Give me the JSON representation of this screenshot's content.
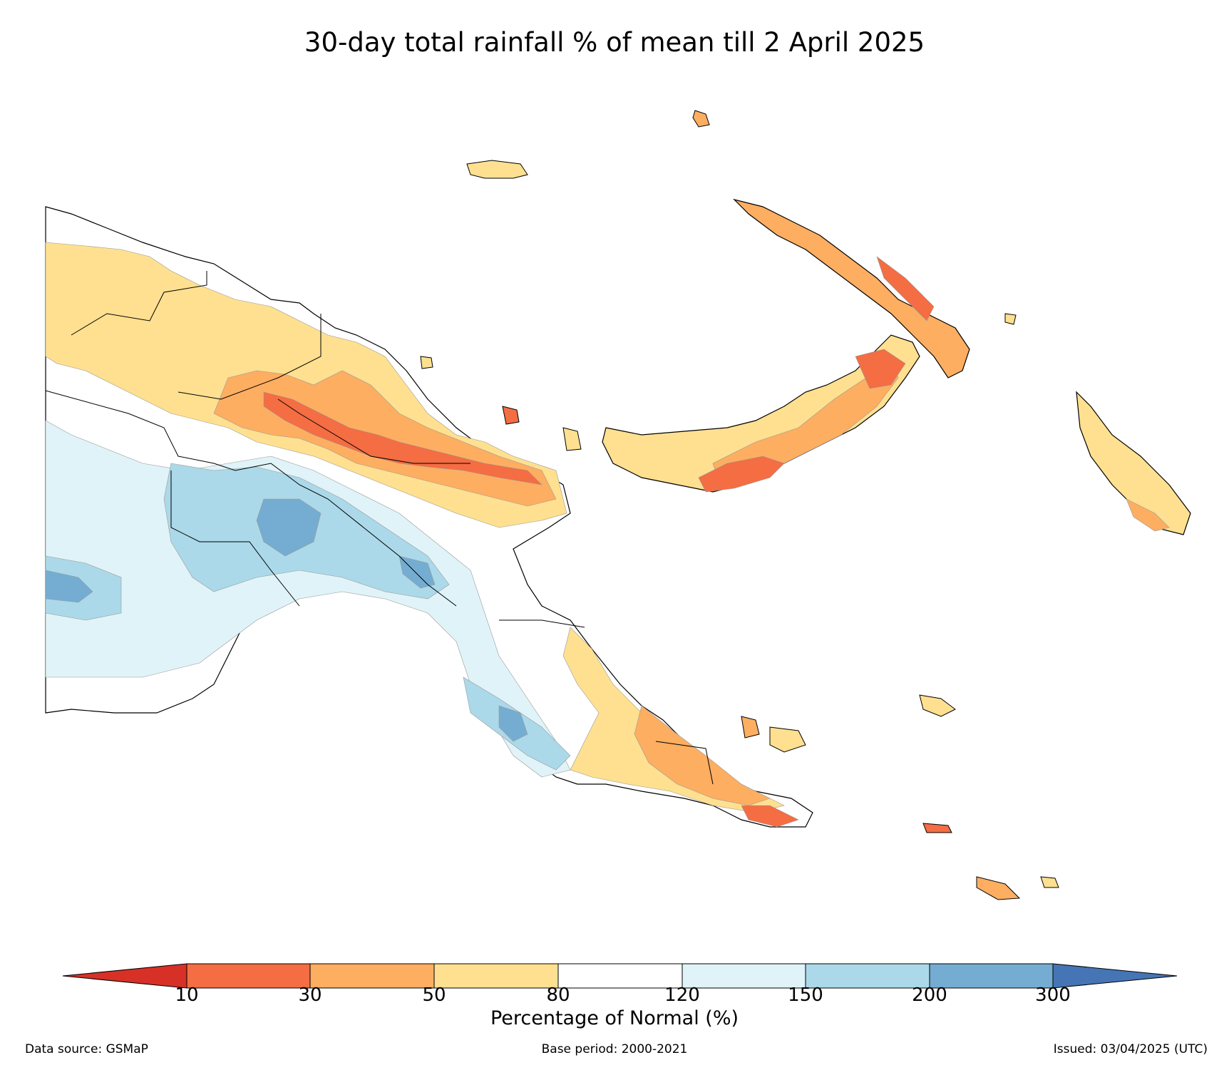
{
  "title": "30-day total rainfall % of mean till 2 April 2025",
  "legend": {
    "label": "Percentage of Normal (%)",
    "ticks": [
      "10",
      "30",
      "50",
      "80",
      "120",
      "150",
      "200",
      "300"
    ],
    "colors": {
      "below_10": "#d73027",
      "10_30": "#f46d43",
      "30_50": "#fdae61",
      "50_80": "#fee090",
      "80_120": "#ffffff",
      "120_150": "#e0f3f8",
      "150_200": "#abd9e9",
      "200_300": "#74add1",
      "above_300": "#4575b4"
    }
  },
  "footer": {
    "source": "Data source: GSMaP",
    "base_period": "Base period: 2000-2021",
    "issued": "Issued: 03/04/2025 (UTC)"
  }
}
